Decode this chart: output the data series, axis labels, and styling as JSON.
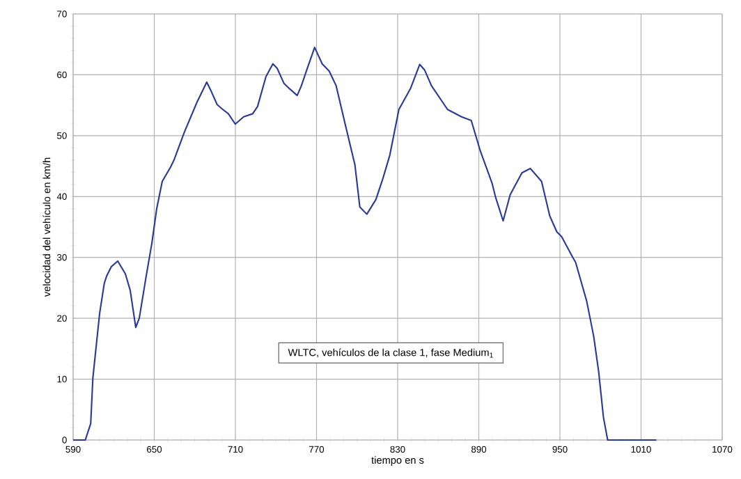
{
  "chart_data": {
    "type": "line",
    "xlabel": "tiempo en s",
    "ylabel": "velocidad del vehículo en km/h",
    "annotations": [
      "WLTC, vehículos de la clase 1, fase Medium$_{1}$"
    ],
    "x": [
      590,
      599,
      603,
      604.6,
      609.6,
      613,
      614.7,
      618.3,
      623,
      628.6,
      632.2,
      636.3,
      638.9,
      644,
      648.2,
      651.8,
      655.9,
      662,
      664.6,
      672.3,
      681.6,
      688.8,
      691.9,
      696.5,
      700.7,
      704.8,
      709.9,
      716.1,
      722.8,
      726.4,
      732.6,
      737.7,
      740.8,
      745.9,
      750.6,
      755.7,
      758.8,
      763.4,
      768.6,
      774.2,
      779.4,
      784.5,
      791.7,
      798.4,
      802,
      807.2,
      813.9,
      819,
      824.2,
      830.9,
      839.6,
      846.3,
      849.9,
      855,
      866.9,
      877.2,
      884.4,
      891.1,
      899.8,
      902.4,
      908,
      913.2,
      921.9,
      928.1,
      936.4,
      942.5,
      947.7,
      951.3,
      959.5,
      961.6,
      969.8,
      975,
      978.6,
      982.2,
      985.3,
      1021.3
    ],
    "series": [
      {
        "color": "#2b3a9a",
        "values": [
          0,
          0,
          2.7,
          10.2,
          20.8,
          25.7,
          26.9,
          28.5,
          29.4,
          27.3,
          24.6,
          18.5,
          20,
          26.9,
          32.3,
          38,
          42.5,
          44.8,
          46,
          50.6,
          55.5,
          58.8,
          57.4,
          55.1,
          54.3,
          53.6,
          51.9,
          53.1,
          53.6,
          54.8,
          59.7,
          61.8,
          61.1,
          58.6,
          57.6,
          56.6,
          58.2,
          61.2,
          64.5,
          61.8,
          60.6,
          58.2,
          51.4,
          45.2,
          38.3,
          37.1,
          39.5,
          42.9,
          46.8,
          54.3,
          57.8,
          61.7,
          60.8,
          58.2,
          54.3,
          53.1,
          52.5,
          47.5,
          42.2,
          39.9,
          36,
          40.3,
          43.9,
          44.6,
          42.5,
          36.8,
          34.2,
          33.4,
          30,
          29.2,
          22.8,
          17,
          11.3,
          3.7,
          0,
          0
        ]
      }
    ],
    "xlim": [
      590,
      1070
    ],
    "xticks": [
      590,
      650,
      710,
      770,
      830,
      890,
      950,
      1010,
      1070
    ],
    "ylim": [
      0,
      70
    ],
    "yticks": [
      0,
      10,
      20,
      30,
      40,
      50,
      60,
      70
    ],
    "grid": true,
    "marker": "none",
    "line_style": "solid"
  }
}
